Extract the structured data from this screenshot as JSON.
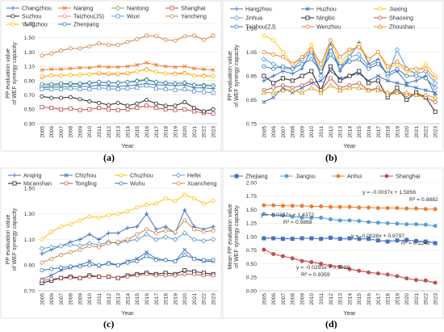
{
  "chart_data": [
    {
      "type": "line",
      "panel": "(a)",
      "ylabel": "PP evaluation value of WEF synergy capacity",
      "xlabel": "Year",
      "x": [
        "2005",
        "2006",
        "2007",
        "2008",
        "2009",
        "2010",
        "2011",
        "2012",
        "2013",
        "2014",
        "2015",
        "2016",
        "2017",
        "2018",
        "2019",
        "2020",
        "2021",
        "2022",
        "2023"
      ],
      "ylim": [
        0.3,
        1.7
      ],
      "yticks": [
        "0.30",
        "0.50",
        "0.70",
        "0.90",
        "1.10",
        "1.30",
        "1.50",
        "1.70"
      ],
      "legend_columns": 4,
      "series": [
        {
          "name": "Changzhou",
          "color": "#4472c4",
          "marker": "plus",
          "values": [
            0.8,
            0.81,
            0.81,
            0.82,
            0.82,
            0.82,
            0.84,
            0.83,
            0.82,
            0.83,
            0.84,
            0.86,
            0.84,
            0.84,
            0.83,
            0.84,
            0.8,
            0.8,
            0.79
          ]
        },
        {
          "name": "Nanjing",
          "color": "#ed7d31",
          "marker": "x",
          "values": [
            1.05,
            1.06,
            1.06,
            1.07,
            1.08,
            1.08,
            1.1,
            1.09,
            1.09,
            1.1,
            1.12,
            1.15,
            1.12,
            1.1,
            1.09,
            1.1,
            1.07,
            1.06,
            1.05
          ]
        },
        {
          "name": "Nantong",
          "color": "#70ad47",
          "marker": "diamond",
          "values": [
            0.82,
            0.83,
            0.84,
            0.85,
            0.85,
            0.86,
            0.88,
            0.87,
            0.87,
            0.88,
            0.9,
            0.92,
            0.88,
            0.87,
            0.86,
            0.87,
            0.84,
            0.84,
            0.83
          ]
        },
        {
          "name": "Shanghai",
          "color": "#c0504d",
          "marker": "square",
          "values": [
            0.53,
            0.52,
            0.5,
            0.51,
            0.49,
            0.5,
            0.52,
            0.5,
            0.49,
            0.5,
            0.52,
            0.55,
            0.52,
            0.5,
            0.49,
            0.5,
            0.47,
            0.45,
            0.44
          ]
        },
        {
          "name": "Suzhou",
          "color": "#1f1f1f",
          "marker": "circle",
          "values": [
            0.68,
            0.66,
            0.66,
            0.67,
            0.64,
            0.61,
            0.59,
            0.56,
            0.59,
            0.55,
            0.58,
            0.63,
            0.58,
            0.55,
            0.55,
            0.6,
            0.52,
            0.47,
            0.5
          ]
        },
        {
          "name": "Taizhou(JS)",
          "color": "#ff7f7f",
          "marker": "circle",
          "values": [
            0.95,
            0.97,
            0.97,
            0.98,
            0.98,
            0.99,
            1.0,
            0.99,
            0.99,
            1.0,
            1.03,
            1.06,
            1.02,
            1.0,
            1.0,
            1.01,
            0.97,
            0.97,
            0.96
          ]
        },
        {
          "name": "Wuxi",
          "color": "#5b9bd5",
          "marker": "square",
          "values": [
            0.78,
            0.78,
            0.78,
            0.79,
            0.78,
            0.78,
            0.8,
            0.79,
            0.78,
            0.79,
            0.8,
            0.83,
            0.79,
            0.78,
            0.77,
            0.78,
            0.75,
            0.74,
            0.73
          ]
        },
        {
          "name": "Yancheng",
          "color": "#d08040",
          "marker": "circle",
          "values": [
            1.25,
            1.28,
            1.32,
            1.35,
            1.35,
            1.38,
            1.42,
            1.4,
            1.4,
            1.44,
            1.48,
            1.53,
            1.52,
            1.47,
            1.46,
            1.52,
            1.53,
            1.47,
            1.53
          ]
        },
        {
          "name": "Yangzhou",
          "color": "#ffc000",
          "marker": "circle",
          "values": [
            0.96,
            0.97,
            0.97,
            0.98,
            0.98,
            0.99,
            1.01,
            1.0,
            1.0,
            1.01,
            1.03,
            1.05,
            1.02,
            1.0,
            0.99,
            1.0,
            0.97,
            0.96,
            0.96
          ]
        },
        {
          "name": "Zhenjiang",
          "color": "#2e75b6",
          "marker": "circle",
          "values": [
            0.85,
            0.85,
            0.86,
            0.86,
            0.86,
            0.87,
            0.88,
            0.87,
            0.87,
            0.88,
            0.89,
            0.91,
            0.88,
            0.87,
            0.86,
            0.87,
            0.84,
            0.83,
            0.83
          ]
        }
      ]
    },
    {
      "type": "line",
      "panel": "(b)",
      "ylabel": "PP evaluation value of WEF synergy capacity",
      "xlabel": "Year",
      "x": [
        "2005",
        "2006",
        "2007",
        "2008",
        "2009",
        "2010",
        "2011",
        "2012",
        "2013",
        "2014",
        "2015",
        "2016",
        "2017",
        "2018",
        "2019",
        "2020",
        "2021",
        "2022",
        "2023"
      ],
      "ylim": [
        0.75,
        1.15
      ],
      "yticks": [
        "0.75",
        "0.85",
        "0.95",
        "1.05",
        "1.15"
      ],
      "legend_columns": 3,
      "series": [
        {
          "name": "Hangzhou",
          "color": "#4472c4",
          "marker": "plus",
          "values": [
            0.93,
            0.95,
            0.97,
            0.96,
            0.98,
            1.06,
            0.96,
            1.08,
            0.97,
            1.03,
            1.09,
            1.0,
            1.02,
            0.95,
            0.97,
            0.92,
            0.93,
            0.95,
            0.87
          ]
        },
        {
          "name": "Huzhou",
          "color": "#4472c4",
          "marker": "x",
          "values": [
            0.84,
            0.86,
            0.9,
            0.88,
            0.9,
            0.92,
            0.93,
            0.97,
            0.94,
            0.95,
            0.96,
            0.93,
            0.95,
            0.93,
            0.92,
            0.91,
            0.9,
            0.89,
            0.88
          ]
        },
        {
          "name": "Jiaxing",
          "color": "#ffc000",
          "marker": "circle",
          "values": [
            1.12,
            1.1,
            1.05,
            1.0,
            1.02,
            1.08,
            0.98,
            1.1,
            1.0,
            1.05,
            1.08,
            1.02,
            1.05,
            0.98,
            1.0,
            0.97,
            0.96,
            1.0,
            0.95
          ]
        },
        {
          "name": "Jinhua",
          "color": "#5b9bd5",
          "marker": "diamond",
          "values": [
            1.02,
            1.0,
            0.98,
            0.98,
            1.02,
            1.05,
            0.95,
            1.07,
            0.99,
            1.03,
            1.04,
            0.99,
            1.01,
            0.95,
            1.06,
            0.98,
            0.96,
            0.97,
            0.92
          ]
        },
        {
          "name": "Ningbo",
          "color": "#1f1f1f",
          "marker": "square",
          "values": [
            0.95,
            0.92,
            0.94,
            0.93,
            0.95,
            0.97,
            0.89,
            0.99,
            0.93,
            0.95,
            0.97,
            0.92,
            0.93,
            0.86,
            0.9,
            0.85,
            0.88,
            0.86,
            0.8
          ]
        },
        {
          "name": "Shaoxing",
          "color": "#c0504d",
          "marker": "circle",
          "values": [
            0.89,
            0.9,
            0.91,
            0.9,
            0.91,
            0.93,
            0.89,
            0.94,
            0.9,
            0.91,
            0.92,
            0.89,
            0.9,
            0.87,
            0.88,
            0.87,
            0.87,
            0.86,
            0.84
          ]
        },
        {
          "name": "Taizhou(ZJ)",
          "color": "#2e75b6",
          "marker": "circle",
          "values": [
            0.99,
            0.98,
            0.99,
            0.98,
            1.0,
            1.02,
            0.97,
            1.04,
            0.99,
            1.01,
            1.02,
            0.98,
            1.0,
            0.96,
            0.98,
            0.95,
            0.95,
            0.94,
            0.9
          ]
        },
        {
          "name": "Wenzhou",
          "color": "#ed7d31",
          "marker": "circle",
          "values": [
            1.05,
            1.04,
            1.03,
            1.0,
            1.03,
            1.06,
            1.0,
            1.1,
            1.03,
            1.06,
            1.07,
            1.02,
            1.05,
            0.99,
            1.01,
            0.98,
            0.98,
            0.98,
            0.94
          ]
        },
        {
          "name": "Zhoushan",
          "color": "#d4a017",
          "marker": "triangle",
          "values": [
            0.88,
            0.88,
            0.89,
            0.89,
            0.88,
            0.9,
            0.88,
            0.91,
            0.89,
            0.9,
            0.9,
            0.89,
            0.89,
            0.88,
            0.88,
            0.88,
            0.87,
            0.87,
            0.86
          ]
        }
      ]
    },
    {
      "type": "line",
      "panel": "(c)",
      "ylabel": "PP evaluation value of WEF synergy capacity",
      "xlabel": "Year",
      "x": [
        "2005",
        "2006",
        "2007",
        "2008",
        "2009",
        "2010",
        "2011",
        "2012",
        "2013",
        "2014",
        "2015",
        "2016",
        "2017",
        "2018",
        "2019",
        "2020",
        "2021",
        "2022",
        "2023"
      ],
      "ylim": [
        0.7,
        1.5
      ],
      "yticks": [
        "0.70",
        "0.90",
        "1.10",
        "1.30",
        "1.50"
      ],
      "legend_columns": 4,
      "series": [
        {
          "name": "Anqing",
          "color": "#4472c4",
          "marker": "plus",
          "values": [
            0.99,
            1.02,
            1.05,
            1.08,
            1.1,
            1.14,
            1.1,
            1.15,
            1.15,
            1.19,
            1.2,
            1.3,
            1.18,
            1.2,
            1.15,
            1.33,
            1.2,
            1.18,
            1.2
          ]
        },
        {
          "name": "Chizhou",
          "color": "#4472c4",
          "marker": "x",
          "values": [
            0.79,
            0.82,
            0.86,
            0.88,
            0.9,
            0.93,
            0.89,
            0.92,
            0.9,
            0.93,
            0.95,
            1.0,
            0.95,
            0.94,
            0.93,
            1.02,
            0.95,
            0.93,
            0.93
          ]
        },
        {
          "name": "Chuzhou",
          "color": "#ffc000",
          "marker": "circle",
          "values": [
            1.1,
            1.16,
            1.2,
            1.22,
            1.25,
            1.28,
            1.27,
            1.29,
            1.3,
            1.32,
            1.35,
            1.37,
            1.38,
            1.42,
            1.4,
            1.45,
            1.42,
            1.38,
            1.4
          ]
        },
        {
          "name": "Hefei",
          "color": "#5b9bd5",
          "marker": "diamond",
          "values": [
            1.03,
            1.04,
            1.05,
            1.06,
            1.05,
            1.07,
            1.06,
            1.08,
            1.07,
            1.09,
            1.1,
            1.14,
            1.1,
            1.12,
            1.1,
            1.15,
            1.1,
            1.09,
            1.1
          ]
        },
        {
          "name": "Ma'anshan",
          "color": "#1f1f1f",
          "marker": "square",
          "values": [
            0.76,
            0.78,
            0.8,
            0.81,
            0.8,
            0.82,
            0.81,
            0.81,
            0.8,
            0.82,
            0.83,
            0.84,
            0.83,
            0.84,
            0.83,
            0.86,
            0.85,
            0.84,
            0.83
          ]
        },
        {
          "name": "Tongling",
          "color": "#c0504d",
          "marker": "circle",
          "values": [
            0.78,
            0.79,
            0.8,
            0.8,
            0.8,
            0.81,
            0.81,
            0.81,
            0.8,
            0.81,
            0.82,
            0.83,
            0.82,
            0.82,
            0.82,
            0.83,
            0.83,
            0.82,
            0.82
          ]
        },
        {
          "name": "Wuhu",
          "color": "#2e75b6",
          "marker": "circle",
          "values": [
            0.86,
            0.87,
            0.88,
            0.89,
            0.89,
            0.9,
            0.9,
            0.91,
            0.9,
            0.92,
            0.93,
            0.97,
            0.94,
            0.94,
            0.93,
            0.98,
            0.95,
            0.94,
            0.94
          ]
        },
        {
          "name": "Xuancheng",
          "color": "#d08040",
          "marker": "circle",
          "values": [
            0.92,
            0.95,
            0.98,
            1.0,
            1.02,
            1.05,
            1.04,
            1.07,
            1.08,
            1.1,
            1.14,
            1.18,
            1.15,
            1.17,
            1.16,
            1.25,
            1.18,
            1.16,
            1.17
          ]
        }
      ]
    },
    {
      "type": "line",
      "panel": "(d)",
      "ylabel": "Mean PP evaluation value of WEF synergy capacity",
      "xlabel": "Year",
      "x": [
        "2005",
        "2006",
        "2007",
        "2008",
        "2009",
        "2010",
        "2011",
        "2012",
        "2013",
        "2014",
        "2015",
        "2016",
        "2017",
        "2018",
        "2019",
        "2020",
        "2021",
        "2022",
        "2023"
      ],
      "ylim": [
        0.0,
        2.0
      ],
      "yticks": [
        "0.00",
        "0.25",
        "0.50",
        "0.75",
        "1.00",
        "1.25",
        "1.50",
        "1.75",
        "2.00"
      ],
      "legend_columns": 4,
      "series": [
        {
          "name": "Zhejiang",
          "color": "#4472c4",
          "marker": "square",
          "values": [
            0.97,
            0.97,
            0.96,
            0.96,
            0.97,
            0.97,
            0.96,
            0.98,
            0.96,
            0.97,
            0.96,
            0.96,
            0.93,
            0.91,
            0.93,
            0.94,
            0.92,
            0.91,
            0.88
          ]
        },
        {
          "name": "Jiangsu",
          "color": "#5b9bd5",
          "marker": "circle",
          "values": [
            1.42,
            1.4,
            1.39,
            1.37,
            1.35,
            1.35,
            1.35,
            1.32,
            1.3,
            1.3,
            1.29,
            1.27,
            1.26,
            1.25,
            1.24,
            1.23,
            1.23,
            1.22,
            1.2
          ]
        },
        {
          "name": "Anhui",
          "color": "#ed7d31",
          "marker": "circle",
          "values": [
            1.58,
            1.58,
            1.57,
            1.57,
            1.57,
            1.56,
            1.56,
            1.55,
            1.55,
            1.55,
            1.54,
            1.54,
            1.53,
            1.53,
            1.53,
            1.52,
            1.52,
            1.51,
            1.51
          ]
        },
        {
          "name": "Shanghai",
          "color": "#c0504d",
          "marker": "circle",
          "values": [
            0.76,
            0.68,
            0.64,
            0.6,
            0.55,
            0.53,
            0.5,
            0.46,
            0.44,
            0.4,
            0.37,
            0.34,
            0.32,
            0.3,
            0.27,
            0.23,
            0.2,
            0.19,
            0.15
          ]
        }
      ],
      "annotations": [
        {
          "text": "y = -0.0037x + 1.5856",
          "series": "Anhui"
        },
        {
          "text": "R² = 0.8882",
          "series": "Anhui"
        },
        {
          "text": "y = -0.0132x + 1.4372",
          "series": "Jiangsu"
        },
        {
          "text": "R² = 0.9868",
          "series": "Jiangsu"
        },
        {
          "text": "y = -0.0028x + 0.9797",
          "series": "Zhejiang"
        },
        {
          "text": "R² = 0.2242",
          "series": "Zhejiang"
        },
        {
          "text": "y = -0.0293x + 0.7039",
          "series": "Shanghai"
        },
        {
          "text": "R² = 0.9359",
          "series": "Shanghai"
        }
      ]
    }
  ]
}
